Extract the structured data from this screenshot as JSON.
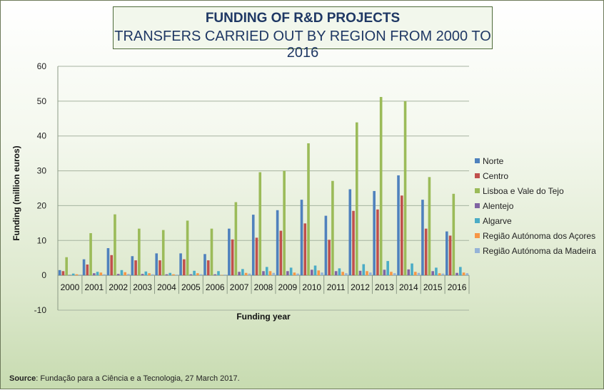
{
  "chart_data": {
    "type": "bar",
    "title": "FUNDING OF R&D PROJECTS",
    "subtitle": "TRANSFERS CARRIED OUT BY REGION FROM 2000 TO 2016",
    "xlabel": "Funding year",
    "ylabel": "Funding (million euros)",
    "ylim": [
      -10,
      60
    ],
    "yticks": [
      -10,
      0,
      10,
      20,
      30,
      40,
      50,
      60
    ],
    "grid": true,
    "legend_position": "right",
    "categories": [
      "2000",
      "2001",
      "2002",
      "2003",
      "2004",
      "2005",
      "2006",
      "2007",
      "2008",
      "2009",
      "2010",
      "2011",
      "2012",
      "2013",
      "2014",
      "2015",
      "2016"
    ],
    "series": [
      {
        "name": "Norte",
        "color": "#4f81bd",
        "values": [
          1.5,
          4.6,
          7.8,
          5.5,
          6.3,
          6.3,
          6.1,
          13.4,
          17.4,
          18.7,
          21.7,
          17.1,
          24.7,
          24.2,
          28.7,
          21.7,
          12.6
        ]
      },
      {
        "name": "Centro",
        "color": "#c0504d",
        "values": [
          1.2,
          3.1,
          5.8,
          4.3,
          4.3,
          4.6,
          4.3,
          10.3,
          10.8,
          12.8,
          14.9,
          10.2,
          18.5,
          18.9,
          22.9,
          13.4,
          11.4
        ]
      },
      {
        "name": "Lisboa e Vale do Tejo",
        "color": "#9bbb59",
        "values": [
          5.2,
          12.1,
          17.5,
          13.4,
          13.0,
          15.7,
          13.4,
          21.0,
          29.6,
          30.0,
          37.9,
          27.1,
          43.9,
          51.2,
          50.0,
          28.2,
          23.4
        ]
      },
      {
        "name": "Alentejo",
        "color": "#8064a2",
        "values": [
          0.1,
          0.6,
          0.4,
          0.4,
          0.3,
          0.3,
          0.3,
          1.0,
          1.2,
          1.2,
          1.6,
          1.2,
          1.3,
          1.6,
          1.7,
          1.2,
          0.7
        ]
      },
      {
        "name": "Algarve",
        "color": "#4bacc6",
        "values": [
          0.5,
          1.0,
          1.5,
          1.1,
          0.7,
          1.3,
          1.2,
          1.8,
          2.4,
          2.2,
          2.8,
          2.0,
          3.2,
          4.1,
          3.4,
          2.2,
          2.4
        ]
      },
      {
        "name": "Região Autónoma dos Açores",
        "color": "#f79646",
        "values": [
          0.3,
          0.8,
          0.9,
          0.6,
          0.3,
          0.6,
          0.1,
          0.7,
          1.2,
          0.8,
          1.4,
          1.0,
          1.2,
          1.0,
          1.0,
          0.6,
          0.8
        ]
      },
      {
        "name": "Região Autónoma da Madeira",
        "color": "#95b3d7",
        "values": [
          0.2,
          0.3,
          0.4,
          0.3,
          0.2,
          0.3,
          0.2,
          0.5,
          0.7,
          0.5,
          0.8,
          0.6,
          0.8,
          0.6,
          0.7,
          0.5,
          0.6
        ]
      }
    ]
  },
  "footer": {
    "source_label": "Source",
    "source_text": ": Fundação para a Ciência e a Tecnologia, 27 March 2017."
  }
}
